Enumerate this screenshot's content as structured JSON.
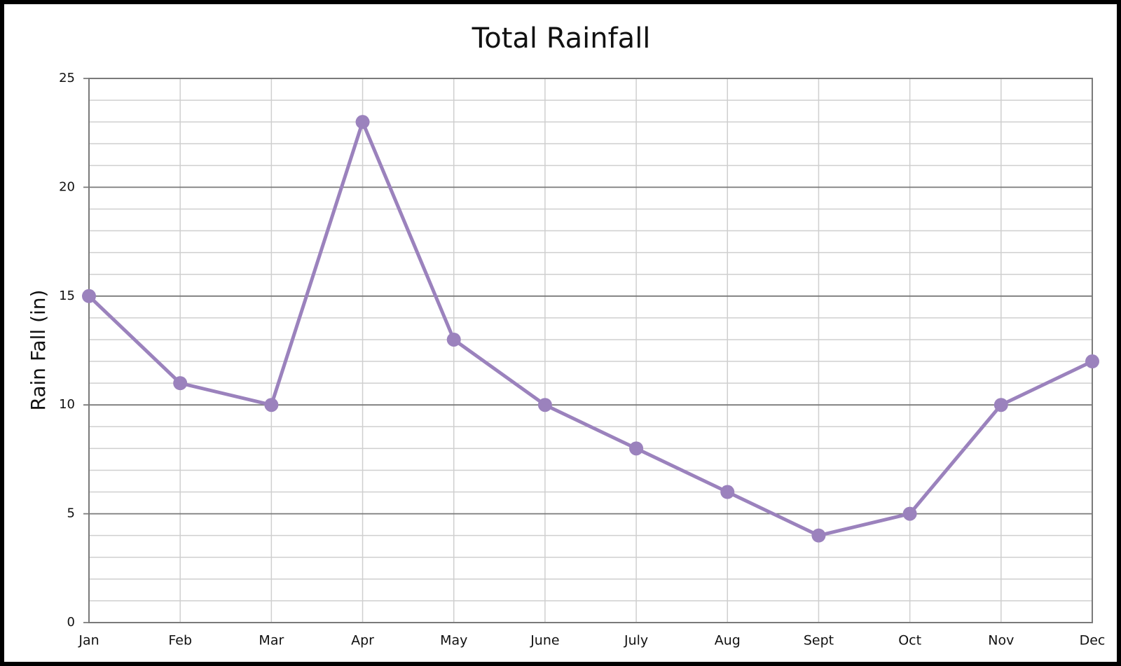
{
  "chart_data": {
    "type": "line",
    "title": "Total Rainfall",
    "y_label": "Rain Fall (in)",
    "categories": [
      "Jan",
      "Feb",
      "Mar",
      "Apr",
      "May",
      "June",
      "July",
      "Aug",
      "Sept",
      "Oct",
      "Nov",
      "Dec"
    ],
    "values": [
      15,
      11,
      10,
      23,
      13,
      10,
      8,
      6,
      4,
      5,
      10,
      12
    ],
    "color": "#9b82bd",
    "ylim": [
      0,
      25
    ],
    "yticks": [
      0,
      5,
      10,
      15,
      20,
      25
    ],
    "grid": true
  }
}
